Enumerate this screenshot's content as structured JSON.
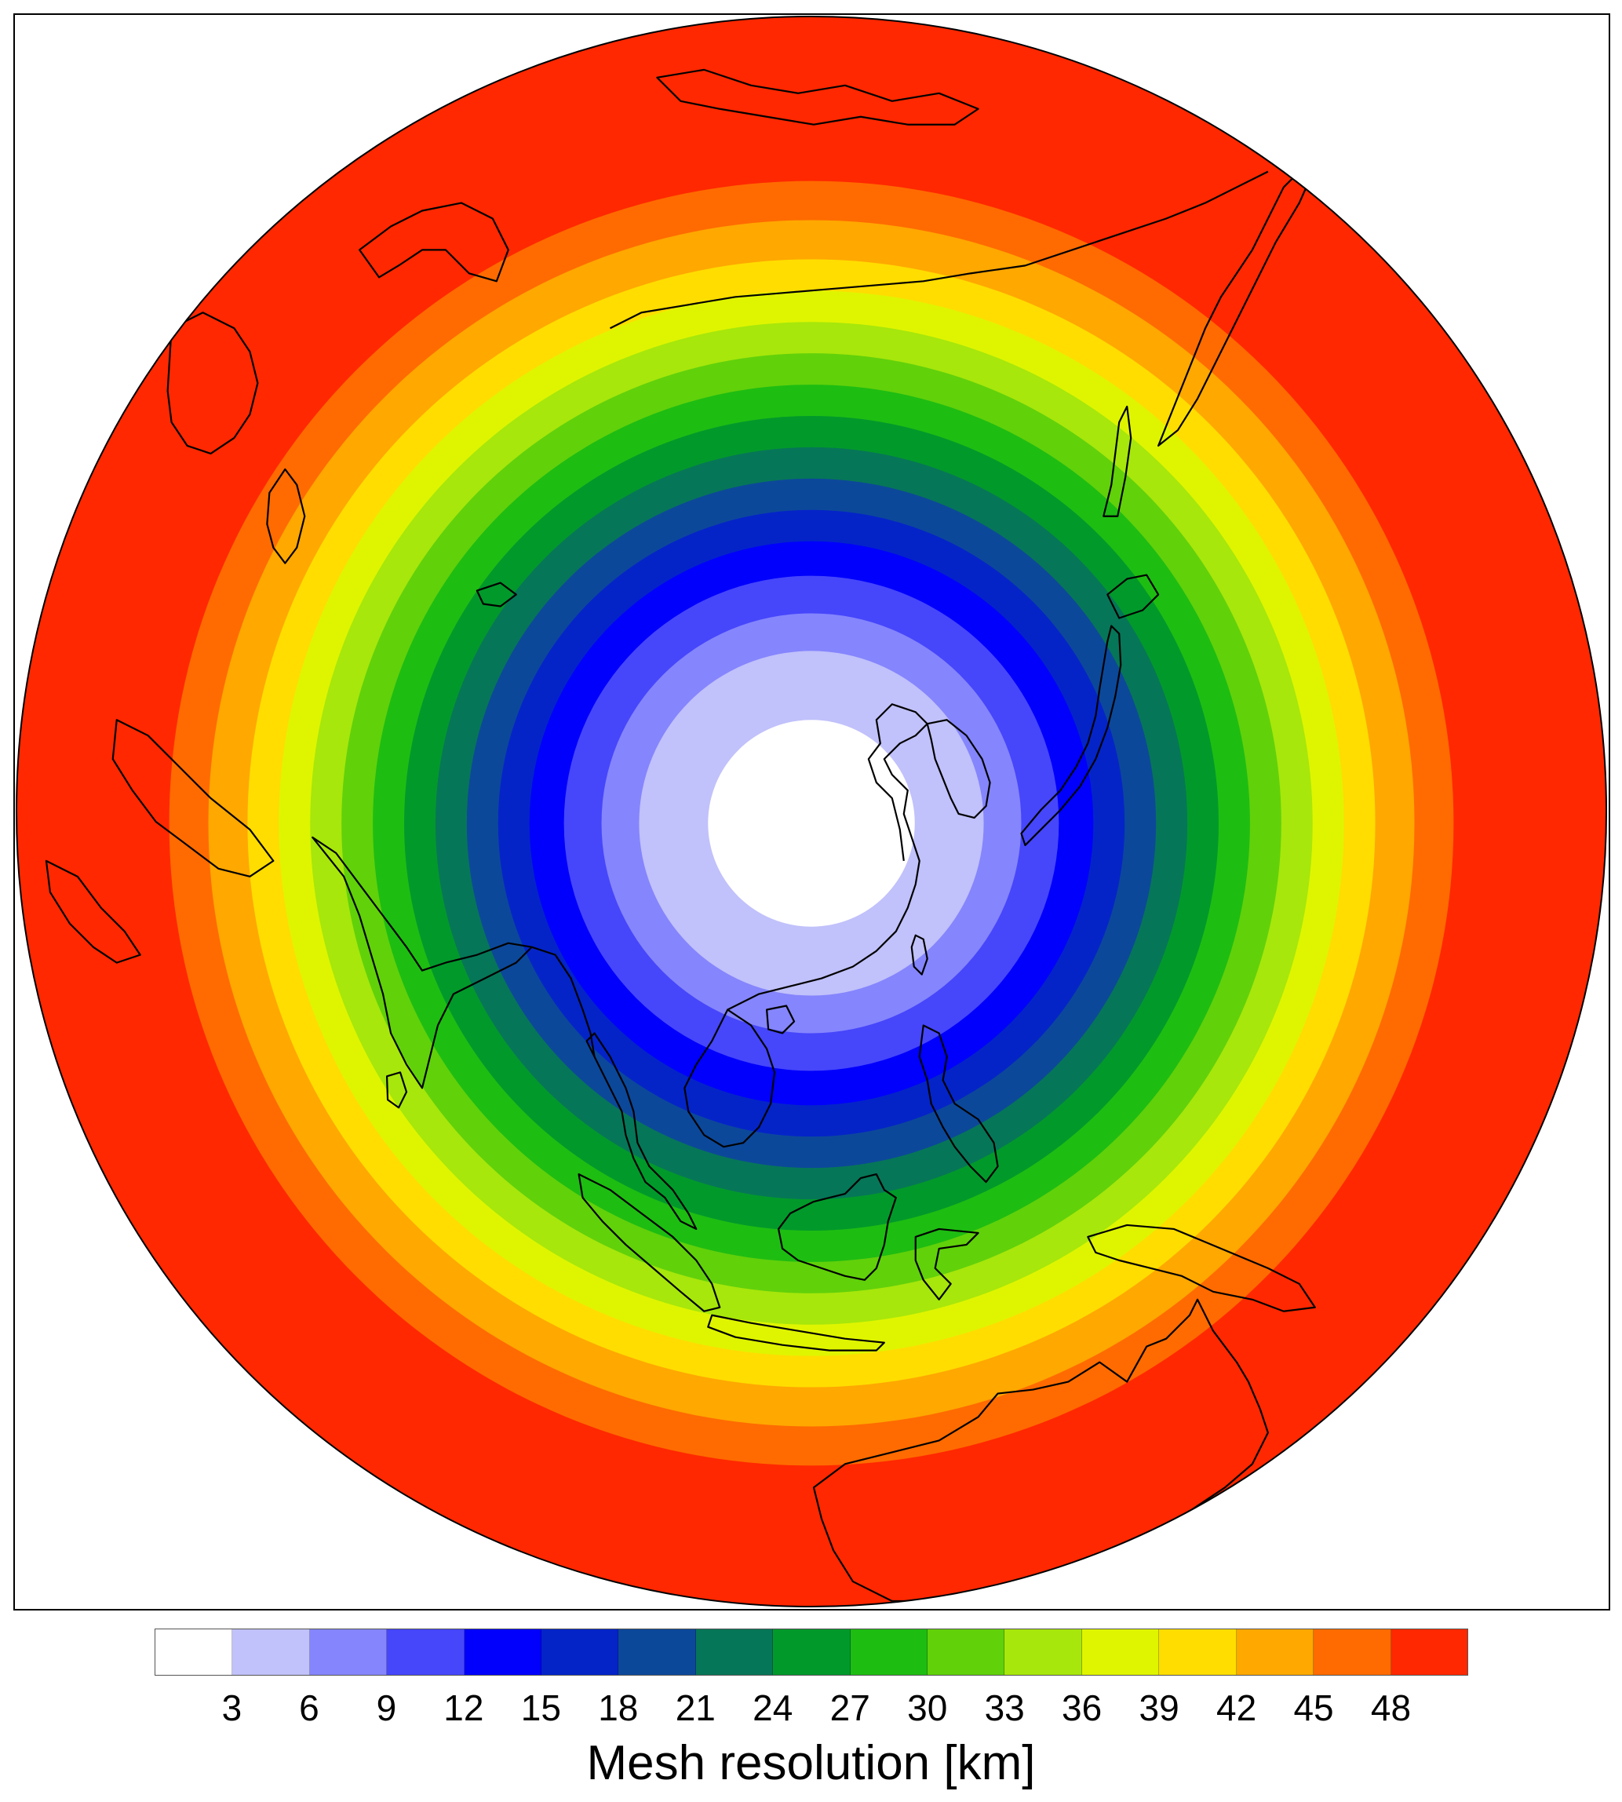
{
  "map": {
    "projection": "orthographic",
    "center_region": "East Asia",
    "ring_colors_inner_to_outer": [
      "#ffffff",
      "#c1c1fb",
      "#8585fd",
      "#4646fb",
      "#0000fc",
      "#0424c8",
      "#0c489a",
      "#067658",
      "#02992b",
      "#1ebd12",
      "#61d10a",
      "#a7e70b",
      "#dff500",
      "#ffdd00",
      "#ffa800",
      "#ff6b00",
      "#ff2800"
    ],
    "coastline_color": "#000000"
  },
  "colorbar": {
    "colors": [
      "#ffffff",
      "#c1c1fb",
      "#8585fd",
      "#4646fb",
      "#0000fc",
      "#0424c8",
      "#0c489a",
      "#067658",
      "#02992b",
      "#1ebd12",
      "#61d10a",
      "#a7e70b",
      "#dff500",
      "#ffdd00",
      "#ffa800",
      "#ff6b00",
      "#ff2800"
    ],
    "ticks": [
      "3",
      "6",
      "9",
      "12",
      "15",
      "18",
      "21",
      "24",
      "27",
      "30",
      "33",
      "36",
      "39",
      "42",
      "45",
      "48"
    ],
    "title": "Mesh resolution [km]"
  }
}
